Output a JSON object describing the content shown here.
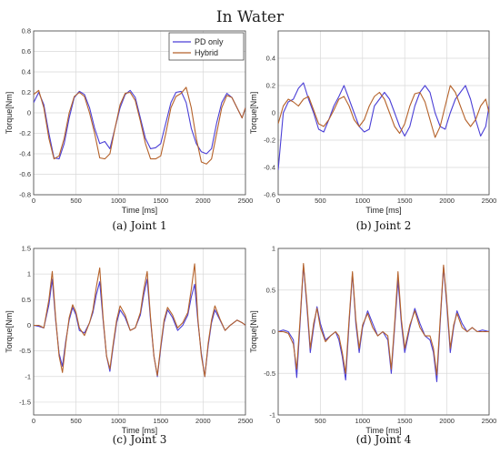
{
  "figure_title": "In Water",
  "colors": {
    "pd_only": "#4b3fd6",
    "hybrid": "#b5622a",
    "grid": "#d9d9d9",
    "axis": "#444444"
  },
  "legend": [
    {
      "label": "PD only",
      "color_key": "pd_only"
    },
    {
      "label": "Hybrid",
      "color_key": "hybrid"
    }
  ],
  "chart_data": [
    {
      "type": "line",
      "caption": "(a) Joint 1",
      "xlabel": "Time [ms]",
      "ylabel": "Torque[Nm]",
      "xlim": [
        0,
        2500
      ],
      "ylim": [
        -0.8,
        0.8
      ],
      "xticks": [
        "0",
        "500",
        "1000",
        "1500",
        "2000",
        "2500"
      ],
      "yticks": [
        "-0.8",
        "-0.6",
        "-0.4",
        "-0.2",
        "0",
        "0.2",
        "0.4",
        "0.6",
        "0.8"
      ],
      "grid": true,
      "legend_position": "top-right",
      "series": [
        {
          "name": "PD only",
          "x": [
            0,
            60,
            120,
            180,
            240,
            300,
            360,
            420,
            480,
            540,
            600,
            660,
            720,
            780,
            840,
            900,
            960,
            1020,
            1080,
            1140,
            1200,
            1260,
            1320,
            1380,
            1440,
            1500,
            1560,
            1620,
            1680,
            1740,
            1800,
            1860,
            1920,
            1980,
            2040,
            2100,
            2160,
            2220,
            2280,
            2340,
            2400,
            2460,
            2500
          ],
          "y": [
            0.1,
            0.2,
            0.08,
            -0.2,
            -0.44,
            -0.45,
            -0.3,
            -0.05,
            0.15,
            0.21,
            0.18,
            0.05,
            -0.15,
            -0.3,
            -0.28,
            -0.35,
            -0.15,
            0.05,
            0.18,
            0.22,
            0.15,
            -0.05,
            -0.25,
            -0.35,
            -0.34,
            -0.3,
            -0.1,
            0.1,
            0.2,
            0.21,
            0.1,
            -0.15,
            -0.3,
            -0.38,
            -0.4,
            -0.35,
            -0.1,
            0.1,
            0.19,
            0.15,
            0.05,
            -0.05,
            0.05
          ]
        },
        {
          "name": "Hybrid",
          "x": [
            0,
            60,
            120,
            180,
            240,
            300,
            360,
            420,
            480,
            540,
            600,
            660,
            720,
            780,
            840,
            900,
            960,
            1020,
            1080,
            1140,
            1200,
            1260,
            1320,
            1380,
            1440,
            1500,
            1560,
            1620,
            1680,
            1740,
            1800,
            1860,
            1920,
            1980,
            2040,
            2100,
            2160,
            2220,
            2280,
            2340,
            2400,
            2460,
            2500
          ],
          "y": [
            0.18,
            0.22,
            0.05,
            -0.25,
            -0.45,
            -0.42,
            -0.25,
            0.0,
            0.16,
            0.2,
            0.16,
            0.0,
            -0.2,
            -0.44,
            -0.45,
            -0.4,
            -0.15,
            0.08,
            0.19,
            0.2,
            0.12,
            -0.08,
            -0.3,
            -0.45,
            -0.45,
            -0.42,
            -0.2,
            0.05,
            0.16,
            0.19,
            0.25,
            0.05,
            -0.25,
            -0.48,
            -0.5,
            -0.45,
            -0.2,
            0.05,
            0.17,
            0.15,
            0.05,
            -0.05,
            0.05
          ]
        }
      ]
    },
    {
      "type": "line",
      "caption": "(b) Joint 2",
      "xlabel": "Time [ms]",
      "ylabel": "Torque[Nm]",
      "xlim": [
        0,
        2500
      ],
      "ylim": [
        -0.6,
        0.6
      ],
      "xticks": [
        "0",
        "500",
        "1000",
        "1500",
        "2000",
        "2500"
      ],
      "yticks": [
        "-0.6",
        "-0.4",
        "-0.2",
        "0",
        "0.2",
        "0.4"
      ],
      "grid": true,
      "series": [
        {
          "name": "PD only",
          "x": [
            0,
            60,
            120,
            180,
            240,
            300,
            360,
            420,
            480,
            540,
            600,
            660,
            720,
            780,
            840,
            900,
            960,
            1020,
            1080,
            1140,
            1200,
            1260,
            1320,
            1380,
            1440,
            1500,
            1560,
            1620,
            1680,
            1740,
            1800,
            1860,
            1920,
            1980,
            2040,
            2100,
            2160,
            2220,
            2280,
            2340,
            2400,
            2460,
            2500
          ],
          "y": [
            -0.42,
            0.0,
            0.08,
            0.1,
            0.18,
            0.22,
            0.1,
            0.0,
            -0.12,
            -0.14,
            -0.05,
            0.05,
            0.12,
            0.2,
            0.1,
            0.0,
            -0.1,
            -0.14,
            -0.12,
            0.05,
            0.1,
            0.15,
            0.1,
            0.0,
            -0.1,
            -0.17,
            -0.1,
            0.05,
            0.15,
            0.2,
            0.15,
            0.0,
            -0.1,
            -0.12,
            0.0,
            0.1,
            0.15,
            0.2,
            0.1,
            -0.05,
            -0.17,
            -0.1,
            0.05
          ]
        },
        {
          "name": "Hybrid",
          "x": [
            0,
            60,
            120,
            180,
            240,
            300,
            360,
            420,
            480,
            540,
            600,
            660,
            720,
            780,
            840,
            900,
            960,
            1020,
            1080,
            1140,
            1200,
            1260,
            1320,
            1380,
            1440,
            1500,
            1560,
            1620,
            1680,
            1740,
            1800,
            1860,
            1920,
            1980,
            2040,
            2100,
            2160,
            2220,
            2280,
            2340,
            2400,
            2460,
            2500
          ],
          "y": [
            -0.08,
            0.05,
            0.1,
            0.08,
            0.05,
            0.1,
            0.12,
            0.02,
            -0.08,
            -0.1,
            -0.05,
            0.02,
            0.1,
            0.12,
            0.05,
            -0.05,
            -0.1,
            -0.05,
            0.05,
            0.12,
            0.15,
            0.1,
            0.0,
            -0.1,
            -0.15,
            -0.08,
            0.05,
            0.14,
            0.15,
            0.08,
            -0.05,
            -0.18,
            -0.1,
            0.05,
            0.2,
            0.15,
            0.05,
            -0.05,
            -0.1,
            -0.05,
            0.05,
            0.1,
            0.0
          ]
        }
      ]
    },
    {
      "type": "line",
      "caption": "(c) Joint 3",
      "xlabel": "Time [ms]",
      "ylabel": "Torque[Nm]",
      "xlim": [
        0,
        2500
      ],
      "ylim": [
        -1.75,
        1.5
      ],
      "xticks": [
        "0",
        "500",
        "1000",
        "1500",
        "2000",
        "2500"
      ],
      "yticks": [
        "-1.5",
        "-1",
        "-0.5",
        "0",
        "0.5",
        "1",
        "1.5"
      ],
      "grid": true,
      "series": [
        {
          "name": "PD only",
          "x": [
            0,
            60,
            120,
            180,
            220,
            260,
            300,
            340,
            380,
            420,
            460,
            500,
            540,
            600,
            660,
            700,
            740,
            780,
            820,
            860,
            900,
            940,
            980,
            1020,
            1080,
            1140,
            1200,
            1260,
            1300,
            1340,
            1380,
            1420,
            1460,
            1500,
            1540,
            1580,
            1640,
            1700,
            1760,
            1820,
            1860,
            1900,
            1940,
            1980,
            2020,
            2060,
            2100,
            2140,
            2200,
            2260,
            2320,
            2400,
            2460,
            2500
          ],
          "y": [
            0.0,
            -0.02,
            -0.05,
            0.4,
            0.9,
            0.1,
            -0.55,
            -0.8,
            -0.3,
            0.1,
            0.35,
            0.2,
            -0.1,
            -0.15,
            0.05,
            0.25,
            0.6,
            0.85,
            0.1,
            -0.6,
            -0.9,
            -0.4,
            0.05,
            0.3,
            0.15,
            -0.1,
            -0.05,
            0.2,
            0.6,
            0.9,
            0.1,
            -0.6,
            -1.0,
            -0.45,
            0.05,
            0.3,
            0.15,
            -0.1,
            0.0,
            0.2,
            0.55,
            0.8,
            0.05,
            -0.55,
            -1.0,
            -0.4,
            0.05,
            0.3,
            0.1,
            -0.1,
            0.0,
            0.1,
            0.05,
            0.0
          ]
        },
        {
          "name": "Hybrid",
          "x": [
            0,
            60,
            120,
            180,
            220,
            260,
            300,
            340,
            380,
            420,
            460,
            500,
            540,
            600,
            660,
            700,
            740,
            780,
            820,
            860,
            900,
            940,
            980,
            1020,
            1080,
            1140,
            1200,
            1260,
            1300,
            1340,
            1380,
            1420,
            1460,
            1500,
            1540,
            1580,
            1640,
            1700,
            1760,
            1820,
            1860,
            1900,
            1940,
            1980,
            2020,
            2060,
            2100,
            2140,
            2200,
            2260,
            2320,
            2400,
            2460,
            2500
          ],
          "y": [
            0.0,
            0.0,
            -0.05,
            0.5,
            1.05,
            0.15,
            -0.6,
            -0.92,
            -0.35,
            0.15,
            0.4,
            0.25,
            -0.05,
            -0.2,
            0.05,
            0.3,
            0.75,
            1.12,
            0.15,
            -0.6,
            -0.85,
            -0.35,
            0.1,
            0.38,
            0.2,
            -0.1,
            -0.05,
            0.25,
            0.7,
            1.05,
            0.15,
            -0.6,
            -0.98,
            -0.4,
            0.1,
            0.35,
            0.2,
            -0.05,
            0.05,
            0.25,
            0.7,
            1.2,
            0.1,
            -0.6,
            -1.0,
            -0.35,
            0.1,
            0.38,
            0.12,
            -0.1,
            0.0,
            0.1,
            0.05,
            0.0
          ]
        }
      ]
    },
    {
      "type": "line",
      "caption": "(d) Joint 4",
      "xlabel": "Time [ms]",
      "ylabel": "Torque[Nm]",
      "xlim": [
        0,
        2500
      ],
      "ylim": [
        -1,
        1
      ],
      "xticks": [
        "0",
        "500",
        "1000",
        "1500",
        "2000",
        "2500"
      ],
      "yticks": [
        "-1",
        "-0.5",
        "0",
        "0.5",
        "1"
      ],
      "grid": true,
      "series": [
        {
          "name": "PD only",
          "x": [
            0,
            60,
            120,
            180,
            220,
            260,
            300,
            340,
            380,
            420,
            460,
            500,
            560,
            620,
            680,
            720,
            760,
            800,
            840,
            880,
            920,
            960,
            1000,
            1060,
            1120,
            1180,
            1240,
            1300,
            1340,
            1380,
            1420,
            1460,
            1500,
            1560,
            1620,
            1680,
            1740,
            1800,
            1840,
            1880,
            1920,
            1960,
            2000,
            2040,
            2080,
            2120,
            2180,
            2240,
            2300,
            2360,
            2420,
            2500
          ],
          "y": [
            0.0,
            0.02,
            0.0,
            -0.1,
            -0.55,
            0.1,
            0.8,
            0.3,
            -0.25,
            0.05,
            0.3,
            0.1,
            -0.1,
            -0.05,
            0.0,
            -0.1,
            -0.3,
            -0.58,
            0.1,
            0.7,
            0.1,
            -0.25,
            0.05,
            0.25,
            0.1,
            -0.05,
            0.0,
            -0.1,
            -0.5,
            0.05,
            0.62,
            0.1,
            -0.25,
            0.05,
            0.28,
            0.1,
            -0.05,
            -0.1,
            -0.25,
            -0.6,
            0.1,
            0.78,
            0.3,
            -0.25,
            0.05,
            0.25,
            0.1,
            0.0,
            0.05,
            0.0,
            0.02,
            0.0
          ]
        },
        {
          "name": "Hybrid",
          "x": [
            0,
            60,
            120,
            180,
            220,
            260,
            300,
            340,
            380,
            420,
            460,
            500,
            560,
            620,
            680,
            720,
            760,
            800,
            840,
            880,
            920,
            960,
            1000,
            1060,
            1120,
            1180,
            1240,
            1300,
            1340,
            1380,
            1420,
            1460,
            1500,
            1560,
            1620,
            1680,
            1740,
            1800,
            1840,
            1880,
            1920,
            1960,
            2000,
            2040,
            2080,
            2120,
            2180,
            2240,
            2300,
            2360,
            2420,
            2500
          ],
          "y": [
            0.0,
            0.0,
            -0.02,
            -0.15,
            -0.45,
            0.15,
            0.82,
            0.35,
            -0.2,
            0.1,
            0.28,
            0.05,
            -0.12,
            -0.05,
            0.0,
            -0.05,
            -0.25,
            -0.5,
            0.15,
            0.72,
            0.15,
            -0.2,
            0.08,
            0.22,
            0.05,
            -0.05,
            0.0,
            -0.05,
            -0.45,
            0.1,
            0.72,
            0.15,
            -0.2,
            0.08,
            0.25,
            0.05,
            -0.05,
            -0.05,
            -0.2,
            -0.52,
            0.15,
            0.8,
            0.35,
            -0.2,
            0.08,
            0.22,
            0.05,
            0.0,
            0.05,
            0.0,
            0.0,
            0.0
          ]
        }
      ]
    }
  ]
}
